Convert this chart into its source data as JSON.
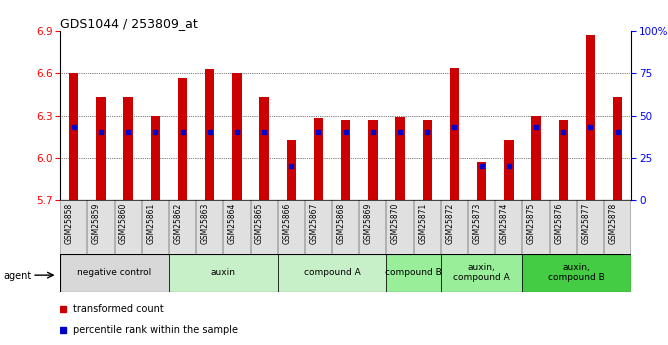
{
  "title": "GDS1044 / 253809_at",
  "samples": [
    "GSM25858",
    "GSM25859",
    "GSM25860",
    "GSM25861",
    "GSM25862",
    "GSM25863",
    "GSM25864",
    "GSM25865",
    "GSM25866",
    "GSM25867",
    "GSM25868",
    "GSM25869",
    "GSM25870",
    "GSM25871",
    "GSM25872",
    "GSM25873",
    "GSM25874",
    "GSM25875",
    "GSM25876",
    "GSM25877",
    "GSM25878"
  ],
  "bar_heights": [
    6.6,
    6.43,
    6.43,
    6.3,
    6.57,
    6.63,
    6.6,
    6.43,
    6.13,
    6.28,
    6.27,
    6.27,
    6.29,
    6.27,
    6.64,
    5.97,
    6.13,
    6.3,
    6.27,
    6.87,
    6.43
  ],
  "percentile_ranks": [
    43,
    40,
    40,
    40,
    40,
    40,
    40,
    40,
    20,
    40,
    40,
    40,
    40,
    40,
    43,
    20,
    20,
    43,
    40,
    43,
    40
  ],
  "bar_color": "#cc0000",
  "dot_color": "#0000cc",
  "ymin": 5.7,
  "ymax": 6.9,
  "yticks_left": [
    5.7,
    6.0,
    6.3,
    6.6,
    6.9
  ],
  "yticks_right": [
    0,
    25,
    50,
    75,
    100
  ],
  "ytick_labels_right": [
    "0",
    "25",
    "50",
    "75",
    "100%"
  ],
  "grid_lines": [
    6.0,
    6.3,
    6.6
  ],
  "agent_groups": [
    {
      "label": "negative control",
      "start": 0,
      "end": 3,
      "color": "#d8d8d8"
    },
    {
      "label": "auxin",
      "start": 4,
      "end": 7,
      "color": "#c8f0c8"
    },
    {
      "label": "compound A",
      "start": 8,
      "end": 11,
      "color": "#c8f0c8"
    },
    {
      "label": "compound B",
      "start": 12,
      "end": 13,
      "color": "#99ee99"
    },
    {
      "label": "auxin,\ncompound A",
      "start": 14,
      "end": 16,
      "color": "#99ee99"
    },
    {
      "label": "auxin,\ncompound B",
      "start": 17,
      "end": 20,
      "color": "#44cc44"
    }
  ],
  "legend_items": [
    {
      "label": "transformed count",
      "color": "#cc0000"
    },
    {
      "label": "percentile rank within the sample",
      "color": "#0000cc"
    }
  ],
  "background_color": "#ffffff",
  "bar_width": 0.35
}
